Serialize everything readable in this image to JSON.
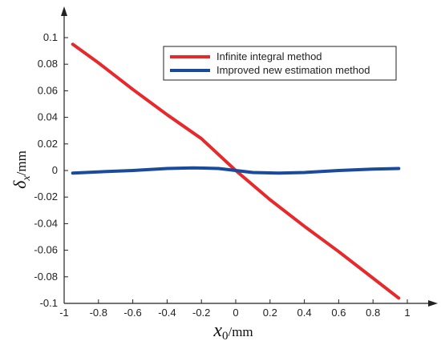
{
  "chart_data": {
    "type": "line",
    "xlabel_symbol": "x",
    "xlabel_subscript": "0",
    "xlabel_unit": "/mm",
    "ylabel_symbol": "δ",
    "ylabel_subscript": "x",
    "ylabel_unit": "/mm",
    "xlim": [
      -1,
      1
    ],
    "ylim": [
      -0.1,
      0.1
    ],
    "xticks": [
      -1,
      -0.8,
      -0.6,
      -0.4,
      -0.2,
      0,
      0.2,
      0.4,
      0.6,
      0.8,
      1
    ],
    "xtick_labels": [
      "-1",
      "-0.8",
      "-0.6",
      "-0.4",
      "-0.2",
      "0",
      "0.2",
      "0.4",
      "0.6",
      "0.8",
      "1"
    ],
    "yticks": [
      -0.1,
      -0.08,
      -0.06,
      -0.04,
      -0.02,
      0,
      0.02,
      0.04,
      0.06,
      0.08,
      0.1
    ],
    "ytick_labels": [
      "-0.1",
      "-0.08",
      "-0.06",
      "-0.04",
      "-0.02",
      "0",
      "0.02",
      "0.04",
      "0.06",
      "0.08",
      "0.1"
    ],
    "grid": false,
    "legend_position": "top-right",
    "series": [
      {
        "name": "Infinite integral method",
        "color": "#e8282b",
        "x": [
          -0.95,
          -0.8,
          -0.6,
          -0.4,
          -0.2,
          0,
          0.2,
          0.4,
          0.6,
          0.8,
          0.95
        ],
        "y": [
          0.095,
          0.081,
          0.061,
          0.042,
          0.024,
          0.0,
          -0.022,
          -0.042,
          -0.061,
          -0.081,
          -0.096
        ]
      },
      {
        "name": "Improved new estimation method",
        "color": "#1a4a9c",
        "x": [
          -0.95,
          -0.8,
          -0.6,
          -0.4,
          -0.25,
          -0.1,
          0,
          0.1,
          0.25,
          0.4,
          0.6,
          0.8,
          0.95
        ],
        "y": [
          -0.002,
          -0.001,
          0.0,
          0.0015,
          0.002,
          0.0015,
          0.0,
          -0.0015,
          -0.002,
          -0.0015,
          0.0,
          0.001,
          0.0015
        ]
      }
    ]
  }
}
